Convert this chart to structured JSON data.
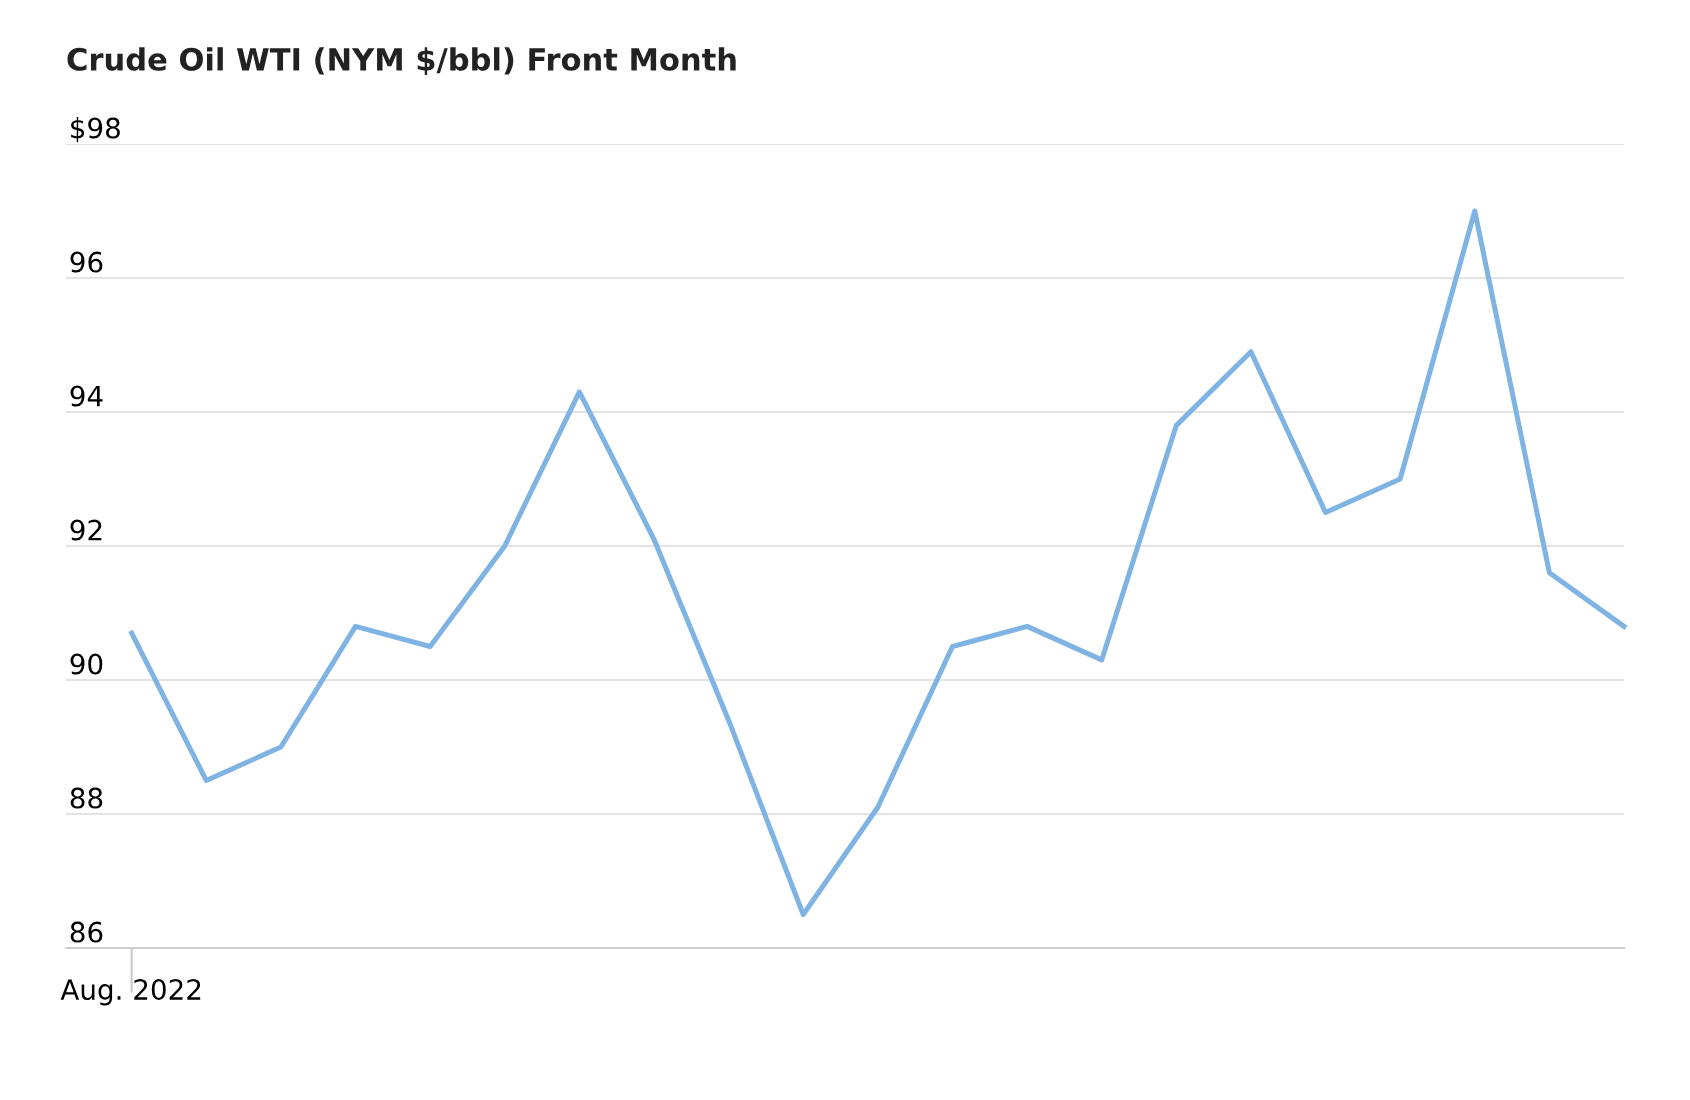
{
  "chart_data": {
    "type": "line",
    "title": "Crude Oil WTI (NYM $/bbl) Front Month",
    "categories": [
      "Aug. 2022",
      null,
      null,
      null,
      null,
      null,
      null,
      null,
      null,
      null,
      null,
      null,
      null,
      null,
      null,
      null,
      null,
      null,
      null,
      null,
      null
    ],
    "series": [
      {
        "color": "#7fb3e3",
        "values": [
          90.7,
          88.5,
          89.0,
          90.8,
          90.5,
          92.0,
          94.3,
          92.1,
          89.4,
          86.5,
          88.1,
          90.5,
          90.8,
          90.3,
          93.8,
          94.9,
          92.5,
          93.0,
          97.0,
          91.6,
          90.8
        ]
      }
    ],
    "ylim": [
      86,
      98
    ],
    "yticks": [
      86,
      88,
      90,
      92,
      94,
      96,
      {
        "value": 98,
        "label": "$98"
      }
    ],
    "grid": "y",
    "legend": false,
    "marker": "none",
    "line_style": "solid"
  }
}
